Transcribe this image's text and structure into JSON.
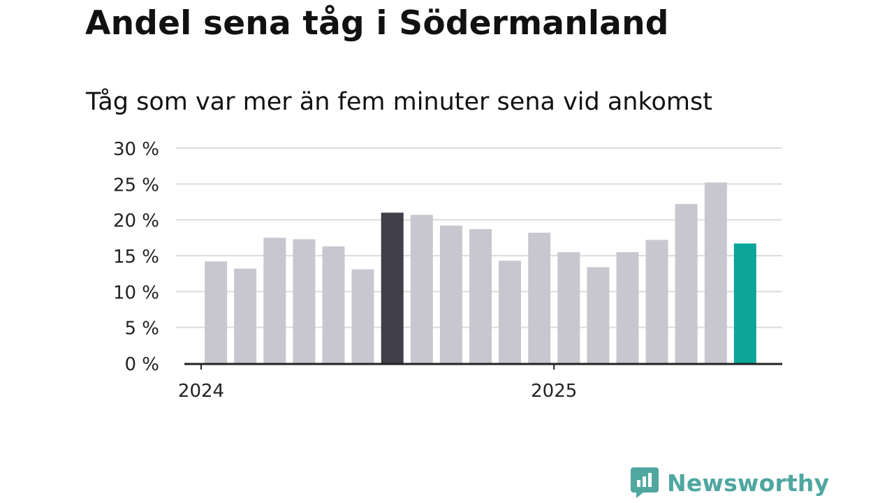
{
  "page": {
    "title": "Andel sena tåg i Södermanland",
    "subtitle": "Tåg som var mer än fem minuter sena vid ankomst"
  },
  "brand": {
    "name": "Newsworthy",
    "color": "#4fa7a0"
  },
  "colors": {
    "default_bar": "#c8c7cf",
    "highlight_bar": "#3f3e4a",
    "latest_bar": "#0ba599",
    "grid": "#dcdcdc",
    "axis": "#222222"
  },
  "chart_data": {
    "type": "bar",
    "ylim": [
      0,
      30
    ],
    "yticks": [
      0,
      5,
      10,
      15,
      20,
      25,
      30
    ],
    "ytick_labels": [
      "0 %",
      "5 %",
      "10 %",
      "15 %",
      "20 %",
      "25 %",
      "30 %"
    ],
    "xtick_labels": [
      "2024",
      "2025"
    ],
    "xtick_positions": [
      -0.5,
      11.5
    ],
    "grid": true,
    "values": [
      14.2,
      13.2,
      17.5,
      17.3,
      16.3,
      13.1,
      21.0,
      20.7,
      19.2,
      18.7,
      14.3,
      18.2,
      15.5,
      13.4,
      15.5,
      17.2,
      22.2,
      25.2,
      16.7
    ],
    "highlight_index": 6,
    "latest_index": 18
  }
}
